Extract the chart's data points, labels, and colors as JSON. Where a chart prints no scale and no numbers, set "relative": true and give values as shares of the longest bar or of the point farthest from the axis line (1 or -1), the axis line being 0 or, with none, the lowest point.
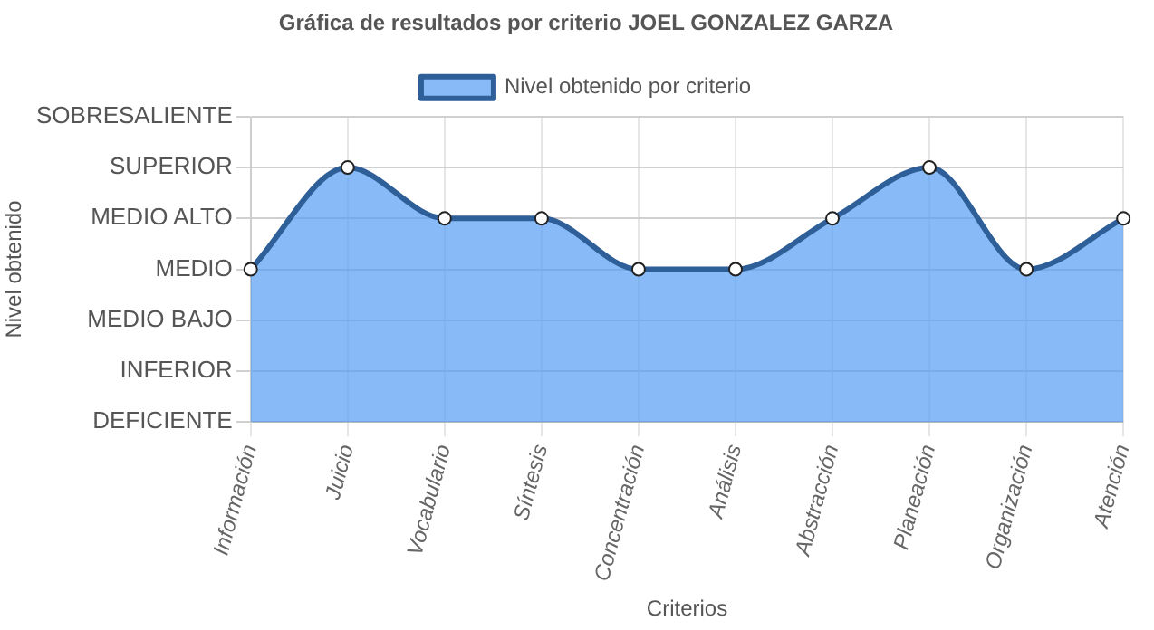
{
  "chart_data": {
    "type": "area",
    "title": "Gráfica de resultados por criterio JOEL GONZALEZ GARZA",
    "xlabel": "Criterios",
    "annotations": [
      "Nivel obtenido"
    ],
    "categories": [
      "Información",
      "Juicio",
      "Vocabulario",
      "Síntesis",
      "Concentración",
      "Análisis",
      "Abstracción",
      "Planeación",
      "Organización",
      "Atención"
    ],
    "y_categories": [
      "SOBRESALIENTE",
      "SUPERIOR",
      "MEDIO ALTO",
      "MEDIO",
      "MEDIO BAJO",
      "INFERIOR",
      "DEFICIENTE"
    ],
    "relative": true,
    "ylim": [
      0,
      1.2
    ],
    "series": [
      {
        "name": "Nivel obtenido por criterio",
        "color": "#2f5f98",
        "values": [
          0.6,
          1,
          0.8,
          0.8,
          0.6,
          0.6,
          0.8,
          1,
          0.6,
          0.8
        ]
      }
    ],
    "grid": true,
    "legend": "top",
    "marker": "circle",
    "line_style": "solid"
  }
}
